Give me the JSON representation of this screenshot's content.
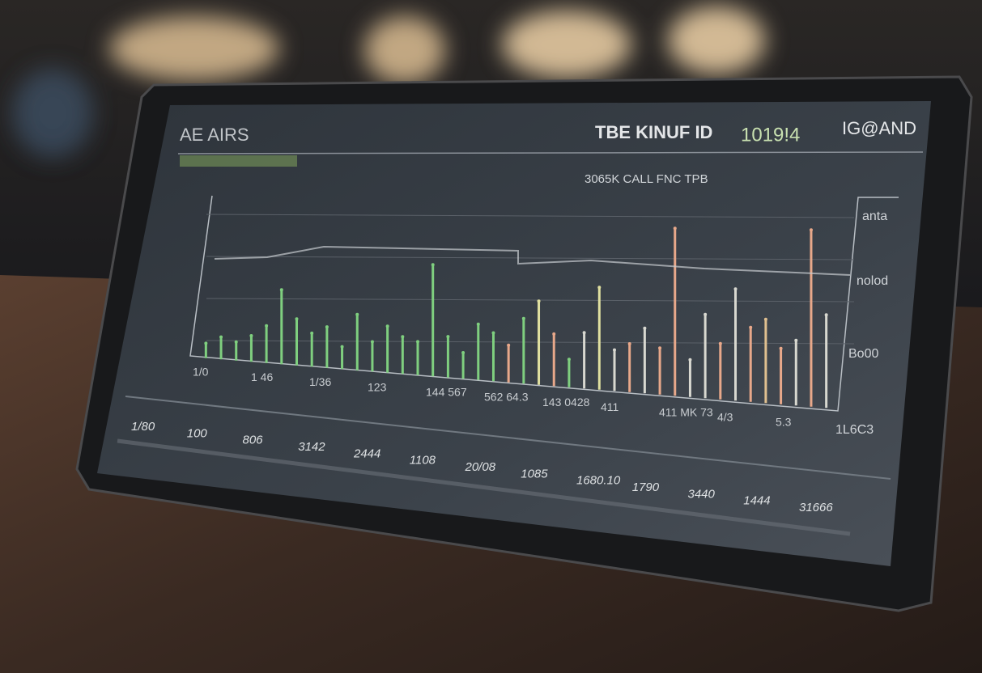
{
  "screen": {
    "header": {
      "left": "AE AIRS",
      "title": "TBE KINUF ID",
      "code": "1019!4",
      "brand": "IG@AND"
    },
    "subtitle": "3065K CALL FNC TPB",
    "side_labels": [
      "anta",
      "nolod",
      "Bo00",
      "1L6C3"
    ],
    "axis_labels": [
      "1/0",
      "1 46",
      "1/36",
      "123",
      "144 567",
      "562 64.3",
      "143 0428",
      "411",
      "411 MK 73",
      "4/3",
      "5.3"
    ],
    "bottom_labels": [
      "1/80",
      "100",
      "806",
      "3142",
      "2444",
      "1108",
      "20/08",
      "1085",
      "1680.10",
      "1790",
      "3440",
      "1444",
      "31666"
    ],
    "chart": {
      "bars": [
        8,
        12,
        10,
        14,
        20,
        40,
        25,
        18,
        22,
        12,
        30,
        16,
        25,
        20,
        18,
        60,
        22,
        14,
        30,
        26,
        20,
        35,
        45,
        28,
        15,
        30,
        55,
        22,
        26,
        35,
        25,
        90,
        20,
        45,
        30,
        60,
        40,
        45,
        30,
        35,
        95,
        50
      ],
      "colors": [
        "#7fcf7f",
        "#7fcf7f",
        "#7fcf7f",
        "#7fcf7f",
        "#7fcf7f",
        "#7fcf7f",
        "#7fcf7f",
        "#7fcf7f",
        "#7fcf7f",
        "#7fcf7f",
        "#7fcf7f",
        "#7fcf7f",
        "#7fcf7f",
        "#7fcf7f",
        "#7fcf7f",
        "#7fcf7f",
        "#7fcf7f",
        "#7fcf7f",
        "#7fcf7f",
        "#7fcf7f",
        "#e8a88a",
        "#7fcf7f",
        "#e0e0a0",
        "#e8a88a",
        "#7fcf7f",
        "#d8d8d0",
        "#e0e0a0",
        "#d8d8d0",
        "#e8a88a",
        "#d8d8d0",
        "#e8a88a",
        "#e8a88a",
        "#d8d8d0",
        "#d8d8d0",
        "#e8a88a",
        "#d8d8d0",
        "#e8a88a",
        "#e0c090",
        "#e8a88a",
        "#d8d8d0",
        "#e8a88a",
        "#d8d8d0"
      ],
      "max": 100
    }
  }
}
